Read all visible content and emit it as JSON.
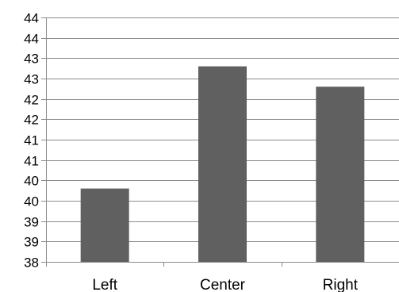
{
  "chart_data": {
    "type": "bar",
    "title": "",
    "xlabel": "",
    "ylabel": "",
    "categories": [
      "Left",
      "Center",
      "Right"
    ],
    "values": [
      39.8,
      42.8,
      42.3
    ],
    "ylim": [
      38,
      44
    ],
    "y_tick_values": [
      38,
      38.5,
      39,
      39.5,
      40,
      40.5,
      41,
      41.5,
      42,
      42.5,
      43,
      43.5,
      44
    ],
    "y_tick_labels": [
      "38",
      "39",
      "39",
      "40",
      "40",
      "41",
      "41",
      "42",
      "42",
      "43",
      "43",
      "44",
      "44"
    ],
    "grid": true,
    "legend": "none",
    "colors": {
      "bar": "#606060",
      "grid": "#8c8c8c",
      "axis": "#8c8c8c"
    }
  }
}
